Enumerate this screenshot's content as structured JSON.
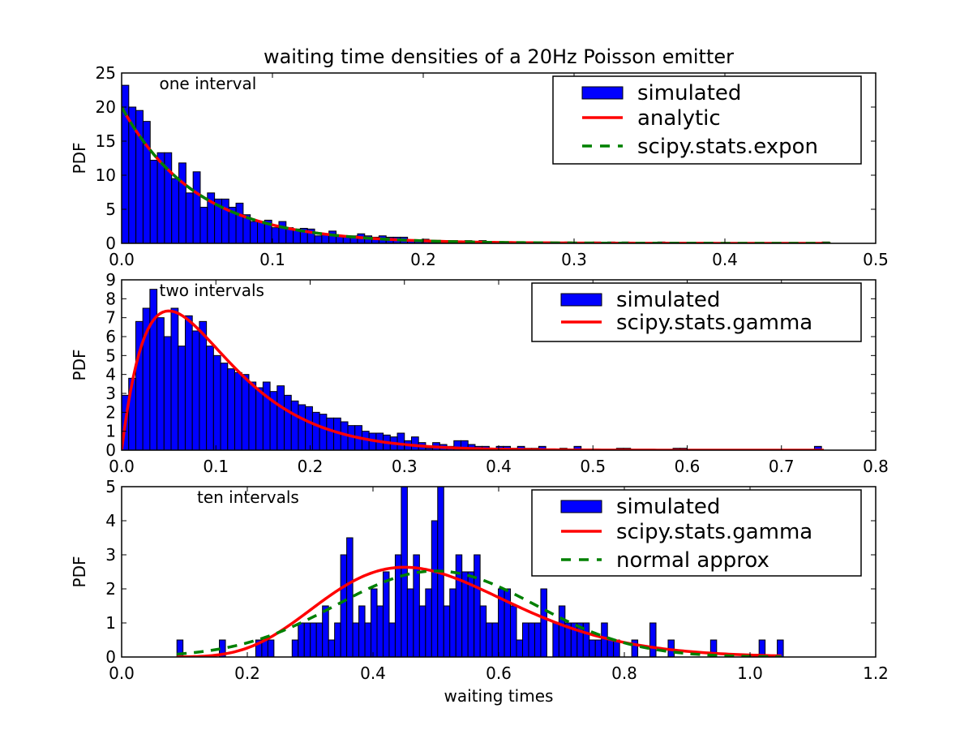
{
  "figure": {
    "title": "waiting time densities of a 20Hz Poisson emitter"
  },
  "chart_data": [
    {
      "type": "bar",
      "annotation": "one interval",
      "ylabel": "PDF",
      "xlabel": "",
      "xlim": [
        0,
        0.5
      ],
      "ylim": [
        0,
        25
      ],
      "xticks": [
        "0.0",
        "0.1",
        "0.2",
        "0.3",
        "0.4",
        "0.5"
      ],
      "yticks": [
        "0",
        "5",
        "10",
        "15",
        "20",
        "25"
      ],
      "legend_position": "top-right",
      "legend": [
        {
          "label": "simulated",
          "kind": "patch",
          "color": "#0000ff"
        },
        {
          "label": "analytic",
          "kind": "line",
          "color": "#ff0000",
          "dash": "solid"
        },
        {
          "label": "scipy.stats.expon",
          "kind": "line",
          "color": "#008000",
          "dash": "dashed"
        }
      ],
      "histogram": {
        "name": "simulated",
        "color": "#0000ff",
        "bin_start": 0.0,
        "bin_width": 0.00474,
        "values": [
          23.2,
          20.0,
          19.5,
          17.9,
          12.2,
          13.3,
          13.3,
          9.5,
          11.8,
          7.4,
          10.5,
          5.3,
          7.4,
          6.5,
          6.5,
          5.3,
          5.9,
          4.2,
          3.2,
          3.2,
          3.4,
          2.3,
          3.2,
          2.3,
          2.1,
          2.2,
          2.1,
          1.1,
          1.4,
          1.8,
          1.1,
          1.1,
          1.1,
          1.4,
          1.1,
          0.9,
          1.1,
          0.9,
          0.9,
          0.9,
          0.4,
          0.4,
          0.6,
          0.2,
          0.4,
          0.4,
          0.4,
          0.2,
          0.4,
          0.2,
          0.4,
          0.2,
          0.2,
          0.2,
          0.2,
          0.2,
          0,
          0.2,
          0.2,
          0.2,
          0.2,
          0,
          0.2,
          0,
          0,
          0,
          0.2,
          0,
          0.2,
          0,
          0.2,
          0,
          0,
          0,
          0,
          0.2,
          0,
          0,
          0,
          0,
          0,
          0,
          0,
          0,
          0,
          0,
          0,
          0,
          0,
          0,
          0,
          0,
          0,
          0,
          0,
          0,
          0,
          0,
          0.2
        ]
      },
      "curves": [
        {
          "name": "analytic",
          "func": "expon",
          "rate": 20,
          "x_range": [
            0,
            0.47
          ],
          "color": "#ff0000",
          "dash": "solid"
        },
        {
          "name": "scipy.stats.expon",
          "func": "expon",
          "rate": 20,
          "x_range": [
            0,
            0.47
          ],
          "color": "#008000",
          "dash": "dashed"
        }
      ]
    },
    {
      "type": "bar",
      "annotation": "two intervals",
      "ylabel": "PDF",
      "xlabel": "",
      "xlim": [
        0,
        0.8
      ],
      "ylim": [
        0,
        9
      ],
      "xticks": [
        "0.0",
        "0.1",
        "0.2",
        "0.3",
        "0.4",
        "0.5",
        "0.6",
        "0.7",
        "0.8"
      ],
      "yticks": [
        "0",
        "1",
        "2",
        "3",
        "4",
        "5",
        "6",
        "7",
        "8",
        "9"
      ],
      "legend_position": "top-right",
      "legend": [
        {
          "label": "simulated",
          "kind": "patch",
          "color": "#0000ff"
        },
        {
          "label": "scipy.stats.gamma",
          "kind": "line",
          "color": "#ff0000",
          "dash": "solid"
        }
      ],
      "histogram": {
        "name": "simulated",
        "color": "#0000ff",
        "bin_start": 0.0,
        "bin_width": 0.0075,
        "values": [
          2.9,
          3.8,
          6.8,
          7.5,
          8.5,
          7.0,
          6.0,
          7.5,
          5.5,
          7.1,
          6.3,
          6.8,
          5.5,
          5.0,
          4.6,
          4.3,
          4.1,
          4.0,
          3.6,
          3.3,
          3.6,
          3.1,
          3.4,
          2.9,
          2.6,
          2.4,
          2.3,
          2.0,
          1.9,
          1.7,
          1.7,
          1.5,
          1.3,
          1.3,
          1.0,
          0.9,
          0.9,
          0.8,
          0.7,
          0.9,
          0.5,
          0.7,
          0.4,
          0.1,
          0.4,
          0.3,
          0.2,
          0.5,
          0.5,
          0.3,
          0.2,
          0.2,
          0.1,
          0.2,
          0.2,
          0.1,
          0.2,
          0.1,
          0.1,
          0.2,
          0,
          0,
          0.1,
          0,
          0.2,
          0,
          0,
          0,
          0,
          0,
          0.1,
          0.1,
          0,
          0,
          0,
          0,
          0,
          0,
          0.1,
          0.1,
          0,
          0,
          0,
          0,
          0,
          0,
          0,
          0,
          0,
          0,
          0,
          0,
          0,
          0,
          0,
          0,
          0,
          0,
          0.2
        ]
      },
      "curves": [
        {
          "name": "scipy.stats.gamma",
          "func": "gamma",
          "shape": 2,
          "rate": 20,
          "x_range": [
            0,
            0.745
          ],
          "color": "#ff0000",
          "dash": "solid"
        }
      ]
    },
    {
      "type": "bar",
      "annotation": "ten intervals",
      "ylabel": "PDF",
      "xlabel": "waiting times",
      "xlim": [
        0,
        1.2
      ],
      "ylim": [
        0,
        5
      ],
      "xticks": [
        "0.0",
        "0.2",
        "0.4",
        "0.6",
        "0.8",
        "1.0",
        "1.2"
      ],
      "yticks": [
        "0",
        "1",
        "2",
        "3",
        "4",
        "5"
      ],
      "legend_position": "top-right",
      "legend": [
        {
          "label": "simulated",
          "kind": "patch",
          "color": "#0000ff"
        },
        {
          "label": "scipy.stats.gamma",
          "kind": "line",
          "color": "#ff0000",
          "dash": "solid"
        },
        {
          "label": "normal approx",
          "kind": "line",
          "color": "#008000",
          "dash": "dashed"
        }
      ],
      "histogram": {
        "name": "simulated",
        "color": "#0000ff",
        "bin_start": 0.088,
        "bin_width": 0.00965,
        "values": [
          0.5,
          0,
          0,
          0,
          0,
          0,
          0,
          0.5,
          0,
          0,
          0,
          0,
          0,
          0.5,
          0.5,
          0.5,
          0,
          0,
          0,
          0.5,
          1.0,
          1.0,
          1.0,
          1.0,
          1.5,
          0.5,
          1.0,
          3.0,
          3.5,
          1.0,
          1.5,
          1.0,
          2.0,
          1.5,
          2.5,
          1.0,
          3.0,
          5.0,
          2.0,
          3.0,
          1.5,
          2.0,
          4.0,
          5.0,
          1.5,
          2.0,
          3.0,
          2.5,
          2.5,
          3.0,
          1.5,
          1.0,
          1.0,
          2.0,
          2.0,
          1.5,
          0.5,
          1.0,
          1.0,
          1.0,
          2.0,
          0,
          1.0,
          1.5,
          1.0,
          1.0,
          1.0,
          1.0,
          0.5,
          0.5,
          1.0,
          0.5,
          0.5,
          0,
          0,
          0.5,
          0,
          0,
          1.0,
          0,
          0,
          0.5,
          0,
          0,
          0,
          0,
          0,
          0,
          0.5,
          0,
          0,
          0,
          0,
          0,
          0,
          0,
          0.5,
          0,
          0,
          0.5
        ]
      },
      "curves": [
        {
          "name": "scipy.stats.gamma",
          "func": "gamma",
          "shape": 10,
          "rate": 20,
          "x_range": [
            0.088,
            1.05
          ],
          "color": "#ff0000",
          "dash": "solid"
        },
        {
          "name": "normal approx",
          "func": "normal",
          "mean": 0.5,
          "sd": 0.158,
          "x_range": [
            0.088,
            1.05
          ],
          "color": "#008000",
          "dash": "dashed"
        }
      ]
    }
  ]
}
